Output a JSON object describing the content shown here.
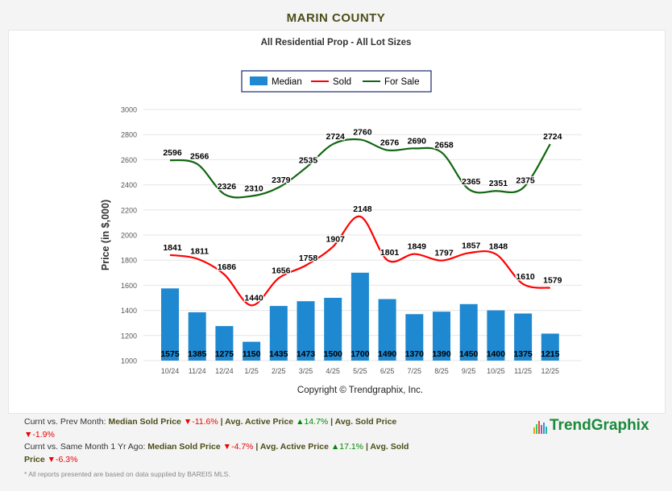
{
  "title": "MARIN COUNTY",
  "chart_data": {
    "type": "bar+line",
    "title": "All Residential Prop - All Lot Sizes",
    "ylabel": "Price (in $,000)",
    "xlabel": "",
    "ylim": [
      1000,
      3000
    ],
    "yticks": [
      "1000",
      "1200",
      "1400",
      "1600",
      "1800",
      "2000",
      "2200",
      "2400",
      "2600",
      "2800",
      "3000"
    ],
    "categories": [
      "10/24",
      "11/24",
      "12/24",
      "1/25",
      "2/25",
      "3/25",
      "4/25",
      "5/25",
      "6/25",
      "7/25",
      "8/25",
      "9/25",
      "10/25",
      "11/25",
      "12/25"
    ],
    "legend_position": "top-center",
    "grid": true,
    "series": [
      {
        "name": "Median",
        "type": "bar",
        "color": "#1e88d0",
        "values": [
          1575,
          1385,
          1275,
          1150,
          1435,
          1473,
          1500,
          1700,
          1490,
          1370,
          1390,
          1450,
          1400,
          1375,
          1215
        ]
      },
      {
        "name": "Sold",
        "type": "line",
        "color": "#ff0000",
        "values": [
          1841,
          1811,
          1686,
          1440,
          1656,
          1758,
          1907,
          2148,
          1801,
          1849,
          1797,
          1857,
          1848,
          1610,
          1579
        ]
      },
      {
        "name": "For Sale",
        "type": "line",
        "color": "#116611",
        "values": [
          2596,
          2566,
          2326,
          2310,
          2379,
          2535,
          2724,
          2760,
          2676,
          2690,
          2658,
          2365,
          2351,
          2375,
          2724
        ]
      }
    ],
    "copyright": "Copyright © Trendgraphix, Inc."
  },
  "footer": {
    "line1_prefix": "Curnt vs. Prev Month: ",
    "line2_prefix": "Curnt vs. Same Month 1 Yr Ago: ",
    "median_label": "Median Sold Price",
    "active_label": "Avg. Active Price",
    "sold_label": "Avg. Sold Price",
    "sep": " | ",
    "prev": {
      "median": "-11.6%",
      "active": "14.7%",
      "sold": "-1.9%"
    },
    "year": {
      "median": "-4.7%",
      "active": "17.1%",
      "sold": "-6.3%"
    },
    "note": "* All reports presented are based on data supplied by BAREIS MLS.",
    "logo": "TrendGraphix"
  }
}
